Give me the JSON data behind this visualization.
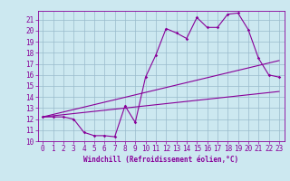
{
  "xlabel": "Windchill (Refroidissement éolien,°C)",
  "bg_color": "#cce8f0",
  "grid_color": "#99bbcc",
  "line_color": "#880099",
  "xlim": [
    -0.5,
    23.5
  ],
  "ylim": [
    10,
    21.8
  ],
  "yticks": [
    10,
    11,
    12,
    13,
    14,
    15,
    16,
    17,
    18,
    19,
    20,
    21
  ],
  "xticks": [
    0,
    1,
    2,
    3,
    4,
    5,
    6,
    7,
    8,
    9,
    10,
    11,
    12,
    13,
    14,
    15,
    16,
    17,
    18,
    19,
    20,
    21,
    22,
    23
  ],
  "line1_x": [
    0,
    1,
    2,
    3,
    4,
    5,
    6,
    7,
    8,
    9,
    10,
    11,
    12,
    13,
    14,
    15,
    16,
    17,
    18,
    19,
    20,
    21,
    22,
    23
  ],
  "line1_y": [
    12.2,
    12.2,
    12.2,
    12.0,
    10.8,
    10.5,
    10.5,
    10.4,
    13.2,
    11.7,
    15.8,
    17.8,
    20.2,
    19.8,
    19.3,
    21.2,
    20.3,
    20.3,
    21.5,
    21.6,
    20.1,
    17.5,
    16.0,
    15.8
  ],
  "line2_x": [
    0,
    23
  ],
  "line2_y": [
    12.2,
    14.5
  ],
  "line3_x": [
    0,
    23
  ],
  "line3_y": [
    12.2,
    17.3
  ],
  "tick_fontsize": 5.5,
  "xlabel_fontsize": 5.5
}
